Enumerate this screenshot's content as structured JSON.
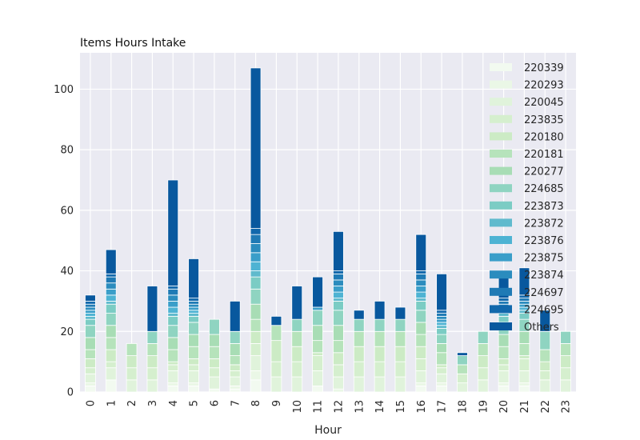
{
  "chart_data": {
    "type": "bar",
    "stacked": true,
    "title": "Items Hours Intake",
    "xlabel": "Hour",
    "ylabel": "",
    "ylim": [
      0,
      112
    ],
    "yticks": [
      0,
      20,
      40,
      60,
      80,
      100
    ],
    "categories": [
      "0",
      "1",
      "2",
      "3",
      "4",
      "5",
      "6",
      "7",
      "8",
      "9",
      "10",
      "11",
      "12",
      "13",
      "14",
      "15",
      "16",
      "17",
      "18",
      "19",
      "20",
      "21",
      "22",
      "23"
    ],
    "grid": true,
    "legend_position": "right",
    "series": [
      {
        "name": "220339",
        "color": "#f2faf0",
        "values": [
          2,
          4,
          0,
          0,
          2,
          2,
          1,
          1,
          4,
          0,
          0,
          2,
          0,
          0,
          0,
          0,
          2,
          2,
          0,
          0,
          2,
          2,
          0,
          0
        ]
      },
      {
        "name": "220293",
        "color": "#eaf7e6",
        "values": [
          1,
          0,
          0,
          0,
          1,
          1,
          0,
          1,
          3,
          0,
          0,
          0,
          1,
          0,
          0,
          0,
          1,
          1,
          0,
          0,
          1,
          1,
          0,
          0
        ]
      },
      {
        "name": "220045",
        "color": "#e0f3db",
        "values": [
          3,
          4,
          4,
          4,
          4,
          4,
          4,
          3,
          5,
          5,
          5,
          5,
          4,
          5,
          5,
          5,
          4,
          3,
          3,
          4,
          4,
          4,
          4,
          4
        ]
      },
      {
        "name": "223835",
        "color": "#d5efce",
        "values": [
          2,
          2,
          4,
          4,
          2,
          2,
          3,
          2,
          4,
          5,
          5,
          5,
          4,
          5,
          5,
          5,
          4,
          2,
          3,
          4,
          2,
          4,
          3,
          4
        ]
      },
      {
        "name": "220180",
        "color": "#ccebc5",
        "values": [
          3,
          4,
          4,
          4,
          1,
          2,
          3,
          2,
          4,
          7,
          5,
          1,
          4,
          5,
          5,
          5,
          4,
          1,
          0,
          4,
          2,
          1,
          3,
          4
        ]
      },
      {
        "name": "220181",
        "color": "#b6e3bb",
        "values": [
          3,
          4,
          4,
          4,
          4,
          4,
          4,
          3,
          4,
          5,
          5,
          4,
          4,
          5,
          5,
          5,
          4,
          4,
          3,
          4,
          4,
          4,
          4,
          4
        ]
      },
      {
        "name": "220277",
        "color": "#a8ddb5",
        "values": [
          4,
          4,
          0,
          0,
          4,
          4,
          4,
          4,
          5,
          0,
          0,
          5,
          5,
          0,
          0,
          0,
          4,
          3,
          0,
          0,
          4,
          4,
          0,
          0
        ]
      },
      {
        "name": "224685",
        "color": "#8fd4c1",
        "values": [
          4,
          4,
          0,
          4,
          4,
          4,
          5,
          4,
          5,
          0,
          4,
          5,
          5,
          4,
          4,
          4,
          4,
          3,
          3,
          4,
          4,
          4,
          6,
          4
        ]
      },
      {
        "name": "223873",
        "color": "#7bccc4",
        "values": [
          2,
          3,
          0,
          0,
          3,
          2,
          0,
          0,
          4,
          0,
          0,
          0,
          3,
          0,
          0,
          0,
          3,
          2,
          0,
          0,
          2,
          2,
          0,
          0
        ]
      },
      {
        "name": "223872",
        "color": "#5fbacd",
        "values": [
          1,
          1,
          0,
          0,
          1,
          1,
          0,
          0,
          2,
          0,
          0,
          0,
          1,
          0,
          0,
          0,
          1,
          1,
          0,
          0,
          1,
          1,
          0,
          0
        ]
      },
      {
        "name": "223876",
        "color": "#4eb3d3",
        "values": [
          1,
          2,
          0,
          0,
          2,
          1,
          0,
          0,
          3,
          0,
          0,
          0,
          2,
          0,
          0,
          0,
          2,
          1,
          0,
          0,
          1,
          1,
          0,
          0
        ]
      },
      {
        "name": "223875",
        "color": "#3a9ec9",
        "values": [
          1,
          2,
          0,
          0,
          2,
          1,
          0,
          0,
          3,
          0,
          0,
          1,
          2,
          0,
          0,
          0,
          2,
          1,
          0,
          0,
          1,
          1,
          0,
          0
        ]
      },
      {
        "name": "223874",
        "color": "#2b8cbe",
        "values": [
          1,
          2,
          0,
          0,
          2,
          1,
          0,
          0,
          3,
          0,
          0,
          0,
          2,
          0,
          0,
          0,
          2,
          1,
          0,
          0,
          1,
          1,
          0,
          0
        ]
      },
      {
        "name": "224697",
        "color": "#1f7ab5",
        "values": [
          1,
          2,
          0,
          0,
          2,
          1,
          0,
          0,
          3,
          0,
          0,
          0,
          2,
          0,
          0,
          0,
          2,
          1,
          0,
          0,
          1,
          1,
          0,
          0
        ]
      },
      {
        "name": "224695",
        "color": "#1168ac",
        "values": [
          1,
          1,
          0,
          0,
          1,
          1,
          0,
          0,
          2,
          0,
          0,
          0,
          1,
          0,
          0,
          0,
          1,
          1,
          0,
          0,
          1,
          1,
          0,
          0
        ]
      },
      {
        "name": "Others",
        "color": "#08589e",
        "values": [
          2,
          8,
          0,
          15,
          35,
          13,
          0,
          10,
          53,
          3,
          11,
          10,
          13,
          3,
          6,
          4,
          12,
          12,
          1,
          0,
          8,
          9,
          7,
          0
        ]
      }
    ]
  }
}
